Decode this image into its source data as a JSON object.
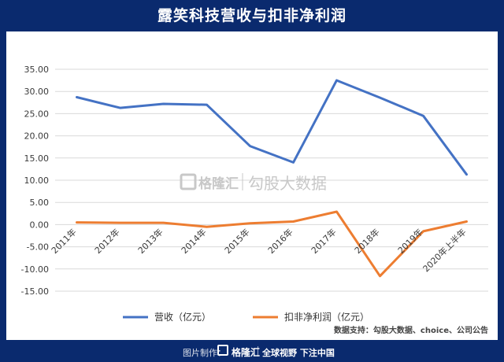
{
  "title": "露笑科技营收与扣非净利润",
  "watermark": {
    "brand": "格隆汇",
    "text": "勾股大数据"
  },
  "source": "数据支持：勾股大数据、choice、公司公告",
  "footer": {
    "made_by": "图片制作：",
    "brand": "格隆汇",
    "slogan": "全球视野 下注中国"
  },
  "colors": {
    "background": "#0a2a6e",
    "revenue": "#4472c4",
    "profit": "#ed7d31"
  },
  "chart_data": {
    "type": "line",
    "categories": [
      "2011年",
      "2012年",
      "2013年",
      "2014年",
      "2015年",
      "2016年",
      "2017年",
      "2018年",
      "2019年",
      "2020年上半年"
    ],
    "series": [
      {
        "name": "营收（亿元）",
        "values": [
          28.7,
          26.3,
          27.2,
          27.0,
          17.7,
          14.0,
          32.5,
          28.6,
          24.5,
          11.3
        ]
      },
      {
        "name": "扣非净利润（亿元）",
        "values": [
          0.5,
          0.4,
          0.4,
          -0.5,
          0.3,
          0.7,
          2.9,
          -11.6,
          -1.5,
          0.7
        ]
      }
    ],
    "ylim": [
      -15,
      35
    ],
    "yticks": [
      "35.00",
      "30.00",
      "25.00",
      "20.00",
      "15.00",
      "10.00",
      "5.00",
      "0.00",
      "-5.00",
      "-10.00",
      "-15.00"
    ],
    "grid": "horizontal",
    "legend": "bottom"
  }
}
